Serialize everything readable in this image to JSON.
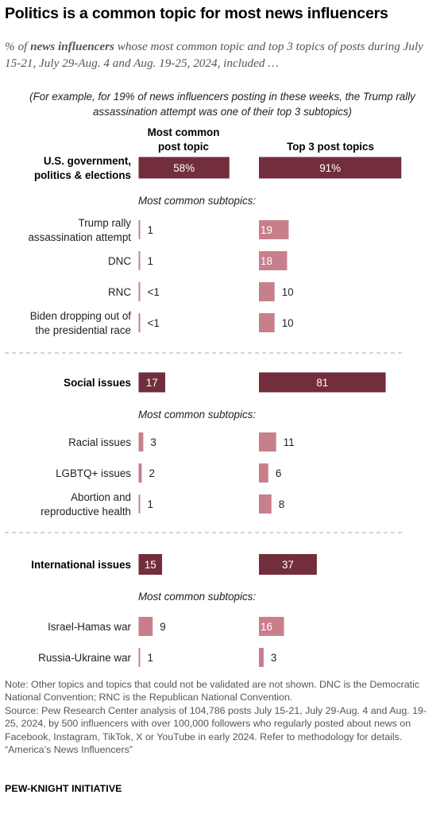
{
  "title": "Politics is a common topic for most news influencers",
  "subtitle": {
    "prefix": "% of ",
    "bold": "news influencers",
    "suffix": " whose most common topic and top 3 topics of posts during July 15-21, July 29-Aug. 4 and Aug. 19-25, 2024, included …"
  },
  "example_note": "(For example, for 19% of news influencers posting in these weeks, the Trump rally assassination attempt was one of their top 3 subtopics)",
  "column_headers": {
    "most_common": "Most common post topic",
    "top3": "Top 3 post topics"
  },
  "colors": {
    "main_bar": "#722e3c",
    "sub_bar": "#c87f8c",
    "main_text": "#ffffff",
    "divider": "#aaaaaa"
  },
  "chart_data": {
    "type": "bar",
    "series": [
      {
        "name": "Most common post topic"
      },
      {
        "name": "Top 3 post topics"
      }
    ],
    "groups": [
      {
        "label": "U.S. government, politics & elections",
        "most_common": 58,
        "most_common_label": "58%",
        "top3": 91,
        "top3_label": "91%",
        "subtopics_heading": "Most common subtopics:",
        "subtopics": [
          {
            "label": "Trump rally assassination attempt",
            "most_common": 1,
            "most_common_label": "1",
            "top3": 19,
            "top3_label": "19"
          },
          {
            "label": "DNC",
            "most_common": 1,
            "most_common_label": "1",
            "top3": 18,
            "top3_label": "18"
          },
          {
            "label": "RNC",
            "most_common": 0.4,
            "most_common_label": "<1",
            "top3": 10,
            "top3_label": "10"
          },
          {
            "label": "Biden dropping out of the presidential race",
            "most_common": 0.4,
            "most_common_label": "<1",
            "top3": 10,
            "top3_label": "10"
          }
        ]
      },
      {
        "label": "Social issues",
        "most_common": 17,
        "most_common_label": "17",
        "top3": 81,
        "top3_label": "81",
        "subtopics_heading": "Most common subtopics:",
        "subtopics": [
          {
            "label": "Racial issues",
            "most_common": 3,
            "most_common_label": "3",
            "top3": 11,
            "top3_label": "11"
          },
          {
            "label": "LGBTQ+ issues",
            "most_common": 2,
            "most_common_label": "2",
            "top3": 6,
            "top3_label": "6"
          },
          {
            "label": "Abortion and reproductive health",
            "most_common": 1,
            "most_common_label": "1",
            "top3": 8,
            "top3_label": "8"
          }
        ]
      },
      {
        "label": "International issues",
        "most_common": 15,
        "most_common_label": "15",
        "top3": 37,
        "top3_label": "37",
        "subtopics_heading": "Most common subtopics:",
        "subtopics": [
          {
            "label": "Israel-Hamas war",
            "most_common": 9,
            "most_common_label": "9",
            "top3": 16,
            "top3_label": "16"
          },
          {
            "label": "Russia-Ukraine war",
            "most_common": 1,
            "most_common_label": "1",
            "top3": 3,
            "top3_label": "3"
          }
        ]
      }
    ]
  },
  "notes": [
    "Note: Other topics and topics that could not be validated are not shown. DNC is the Democratic National Convention; RNC is the Republican National Convention.",
    "Source: Pew Research Center analysis of 104,786 posts July 15-21, July 29-Aug. 4 and Aug. 19-25, 2024, by 500 influencers with over 100,000 followers who regularly posted about news on Facebook, Instagram, TikTok, X or YouTube in early 2024. Refer to methodology for details.",
    "“America’s News Influencers”"
  ],
  "brand": "PEW-KNIGHT INITIATIVE"
}
